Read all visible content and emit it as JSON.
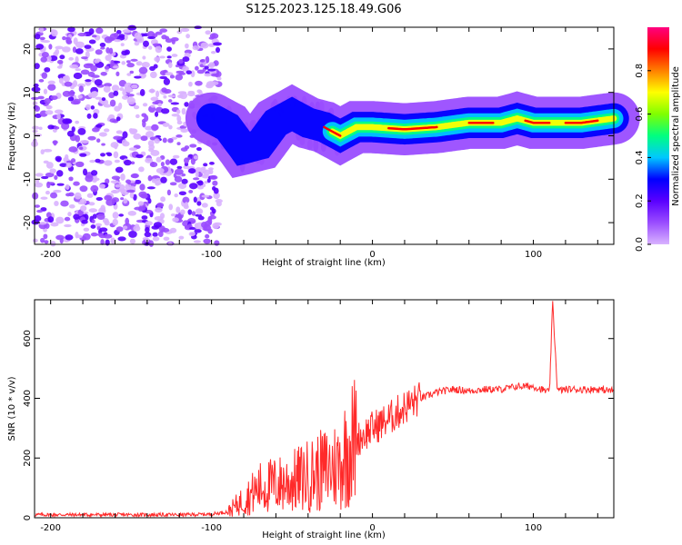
{
  "title": "S125.2023.125.18.49.G06",
  "colors": {
    "snr_line": "#ff2a2a",
    "colorscale": [
      "#ffffff",
      "#d9b3ff",
      "#9a4dff",
      "#5a00ff",
      "#0000ff",
      "#00c8ff",
      "#00ff80",
      "#80ff00",
      "#ffff00",
      "#ff8000",
      "#ff0000",
      "#ff0080"
    ]
  },
  "chart_data": [
    {
      "type": "heatmap",
      "name": "spectrogram",
      "xlabel": "Height of straight line (km)",
      "ylabel": "Frequency (Hz)",
      "xlim": [
        -210,
        150
      ],
      "ylim": [
        -25,
        25
      ],
      "xticks": [
        -200,
        -100,
        0,
        100
      ],
      "yticks": [
        -20,
        -10,
        0,
        10,
        20
      ],
      "colorbar": {
        "label": "Normalized spectral amplitude",
        "range": [
          0,
          1
        ],
        "ticks": [
          "0.0",
          "0.2",
          "0.4",
          "0.6",
          "0.8"
        ]
      },
      "dominant_frequency_ridge": {
        "x": [
          -100,
          -90,
          -80,
          -70,
          -60,
          -50,
          -40,
          -30,
          -20,
          -10,
          0,
          20,
          40,
          60,
          80,
          90,
          100,
          110,
          130,
          150
        ],
        "y": [
          4,
          2,
          -3,
          -2,
          3,
          5,
          3,
          2,
          0,
          2,
          2,
          1.5,
          2,
          3,
          3,
          4,
          3,
          3,
          3,
          4
        ]
      }
    },
    {
      "type": "line",
      "name": "snr",
      "xlabel": "Height of straight line (km)",
      "ylabel": "SNR (10 * v/v)",
      "xlim": [
        -210,
        150
      ],
      "ylim": [
        0,
        730
      ],
      "xticks": [
        -200,
        -100,
        0,
        100
      ],
      "yticks": [
        0,
        200,
        400,
        600
      ],
      "x": [
        -210,
        -180,
        -150,
        -120,
        -100,
        -90,
        -80,
        -70,
        -60,
        -50,
        -40,
        -30,
        -20,
        -15,
        -10,
        0,
        10,
        20,
        30,
        40,
        50,
        60,
        70,
        80,
        90,
        95,
        100,
        105,
        110,
        112,
        115,
        120,
        130,
        140,
        150
      ],
      "y": [
        10,
        10,
        10,
        10,
        12,
        20,
        60,
        100,
        110,
        120,
        140,
        160,
        180,
        240,
        260,
        300,
        330,
        370,
        400,
        420,
        430,
        425,
        430,
        430,
        440,
        440,
        440,
        430,
        420,
        720,
        425,
        430,
        430,
        430,
        425
      ]
    }
  ]
}
